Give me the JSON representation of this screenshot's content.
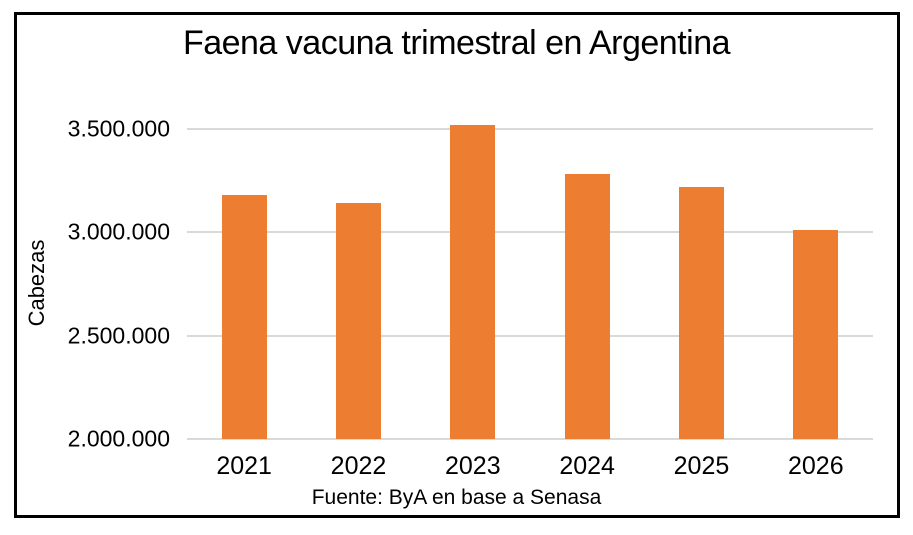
{
  "window": {
    "background_color": "#FFFFFF",
    "frame_border_color": "#000000"
  },
  "chart_data": {
    "type": "bar",
    "title": "Faena vacuna trimestral en Argentina",
    "ylabel": "Cabezas",
    "xlabel": "",
    "source_note": "Fuente: ByA en base a Senasa",
    "categories": [
      "2021",
      "2022",
      "2023",
      "2024",
      "2025",
      "2026"
    ],
    "values": [
      3180000,
      3140000,
      3520000,
      3280000,
      3220000,
      3010000
    ],
    "ylim": [
      2000000,
      3600000
    ],
    "yticks": [
      2000000,
      2500000,
      3000000,
      3500000
    ],
    "ytick_labels": [
      "2.000.000",
      "2.500.000",
      "3.000.000",
      "3.500.000"
    ],
    "grid": true,
    "legend": false,
    "bar_color": "#ED7D31",
    "gridline_color": "#D9D9D9",
    "text_color": "#000000"
  }
}
